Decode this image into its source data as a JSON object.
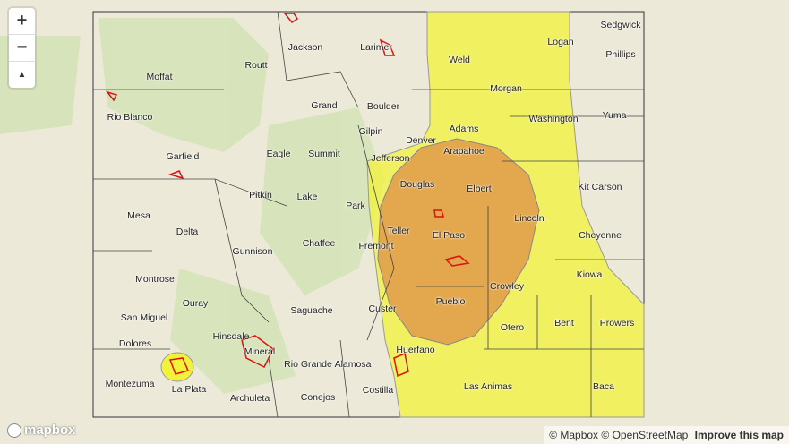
{
  "map": {
    "colors": {
      "risk_low": "#f2f23a",
      "risk_moderate": "#e8a44a",
      "fire": "#e01010",
      "background": "#ede9d8"
    },
    "counties": [
      "Moffat",
      "Routt",
      "Jackson",
      "Larimer",
      "Weld",
      "Logan",
      "Sedgwick",
      "Phillips",
      "Rio Blanco",
      "Grand",
      "Boulder",
      "Morgan",
      "Washington",
      "Yuma",
      "Gilpin",
      "Adams",
      "Denver",
      "Garfield",
      "Eagle",
      "Summit",
      "Jefferson",
      "Arapahoe",
      "Pitkin",
      "Douglas",
      "Elbert",
      "Kit Carson",
      "Mesa",
      "Lake",
      "Park",
      "Delta",
      "Teller",
      "El Paso",
      "Lincoln",
      "Cheyenne",
      "Chaffee",
      "Gunnison",
      "Fremont",
      "Kiowa",
      "Montrose",
      "Crowley",
      "Ouray",
      "Custer",
      "Pueblo",
      "San Miguel",
      "Saguache",
      "Bent",
      "Prowers",
      "Otero",
      "Dolores",
      "Hinsdale",
      "Mineral",
      "Huerfano",
      "Rio Grande",
      "Alamosa",
      "Montezuma",
      "La Plata",
      "Archuleta",
      "Conejos",
      "Costilla",
      "Las Animas",
      "Baca"
    ]
  },
  "controls": {
    "zoom_in": "+",
    "zoom_out": "−",
    "compass": "▲"
  },
  "logo": "mapbox",
  "attribution": {
    "mapbox": "© Mapbox",
    "osm": "© OpenStreetMap",
    "improve": "Improve this map"
  }
}
